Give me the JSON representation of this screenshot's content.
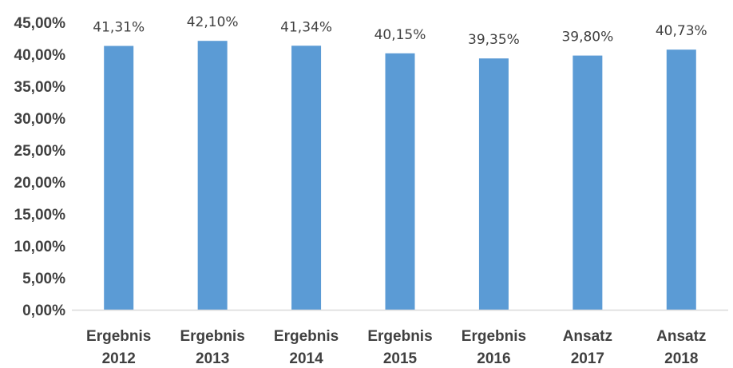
{
  "chart_data": {
    "type": "bar",
    "categories": [
      [
        "Ergebnis",
        "2012"
      ],
      [
        "Ergebnis",
        "2013"
      ],
      [
        "Ergebnis",
        "2014"
      ],
      [
        "Ergebnis",
        "2015"
      ],
      [
        "Ergebnis",
        "2016"
      ],
      [
        "Ansatz",
        "2017"
      ],
      [
        "Ansatz",
        "2018"
      ]
    ],
    "values": [
      41.31,
      42.1,
      41.34,
      40.15,
      39.35,
      39.8,
      40.73
    ],
    "data_labels": [
      "41,31%",
      "42,10%",
      "41,34%",
      "40,15%",
      "39,35%",
      "39,80%",
      "40,73%"
    ],
    "y_ticks": [
      "0,00%",
      "5,00%",
      "10,00%",
      "15,00%",
      "20,00%",
      "25,00%",
      "30,00%",
      "35,00%",
      "40,00%",
      "45,00%"
    ],
    "ylim": [
      0,
      45
    ],
    "grid": false,
    "bar_color": "#5B9BD5",
    "axis_color": "#D9D9D9",
    "text_color": "#404040"
  }
}
